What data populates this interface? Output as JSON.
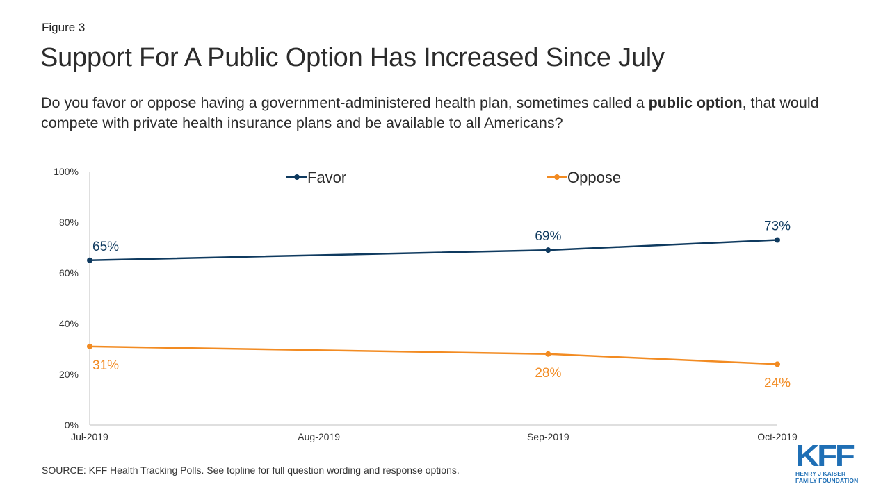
{
  "figure_label": "Figure 3",
  "title": "Support For A Public Option Has Increased Since July",
  "question": {
    "before": "Do you favor or oppose having a government-administered health plan, sometimes called a ",
    "bold": "public option",
    "after": ", that would compete with private health insurance plans and be available to all Americans?"
  },
  "source": "SOURCE: KFF Health Tracking Polls. See topline for full question wording and response options.",
  "logo": {
    "mark": "KFF",
    "line1": "HENRY J KAISER",
    "line2": "FAMILY FOUNDATION"
  },
  "colors": {
    "favor": "#0f3a5f",
    "oppose": "#f28b22",
    "axis": "#bfbfbf",
    "brand": "#1f6fb5"
  },
  "chart_data": {
    "type": "line",
    "categories": [
      "Jul-2019",
      "Aug-2019",
      "Sep-2019",
      "Oct-2019"
    ],
    "x_months": [
      0,
      1,
      2,
      3
    ],
    "y_ticks": [
      "0%",
      "20%",
      "40%",
      "60%",
      "80%",
      "100%"
    ],
    "ylim": [
      0,
      100
    ],
    "legend_position": "top",
    "grid": false,
    "series": [
      {
        "name": "Favor",
        "points": [
          {
            "category": "Jul-2019",
            "value": 65,
            "label": "65%"
          },
          {
            "category": "Sep-2019",
            "value": 69,
            "label": "69%"
          },
          {
            "category": "Oct-2019",
            "value": 73,
            "label": "73%"
          }
        ]
      },
      {
        "name": "Oppose",
        "points": [
          {
            "category": "Jul-2019",
            "value": 31,
            "label": "31%"
          },
          {
            "category": "Sep-2019",
            "value": 28,
            "label": "28%"
          },
          {
            "category": "Oct-2019",
            "value": 24,
            "label": "24%"
          }
        ]
      }
    ]
  }
}
